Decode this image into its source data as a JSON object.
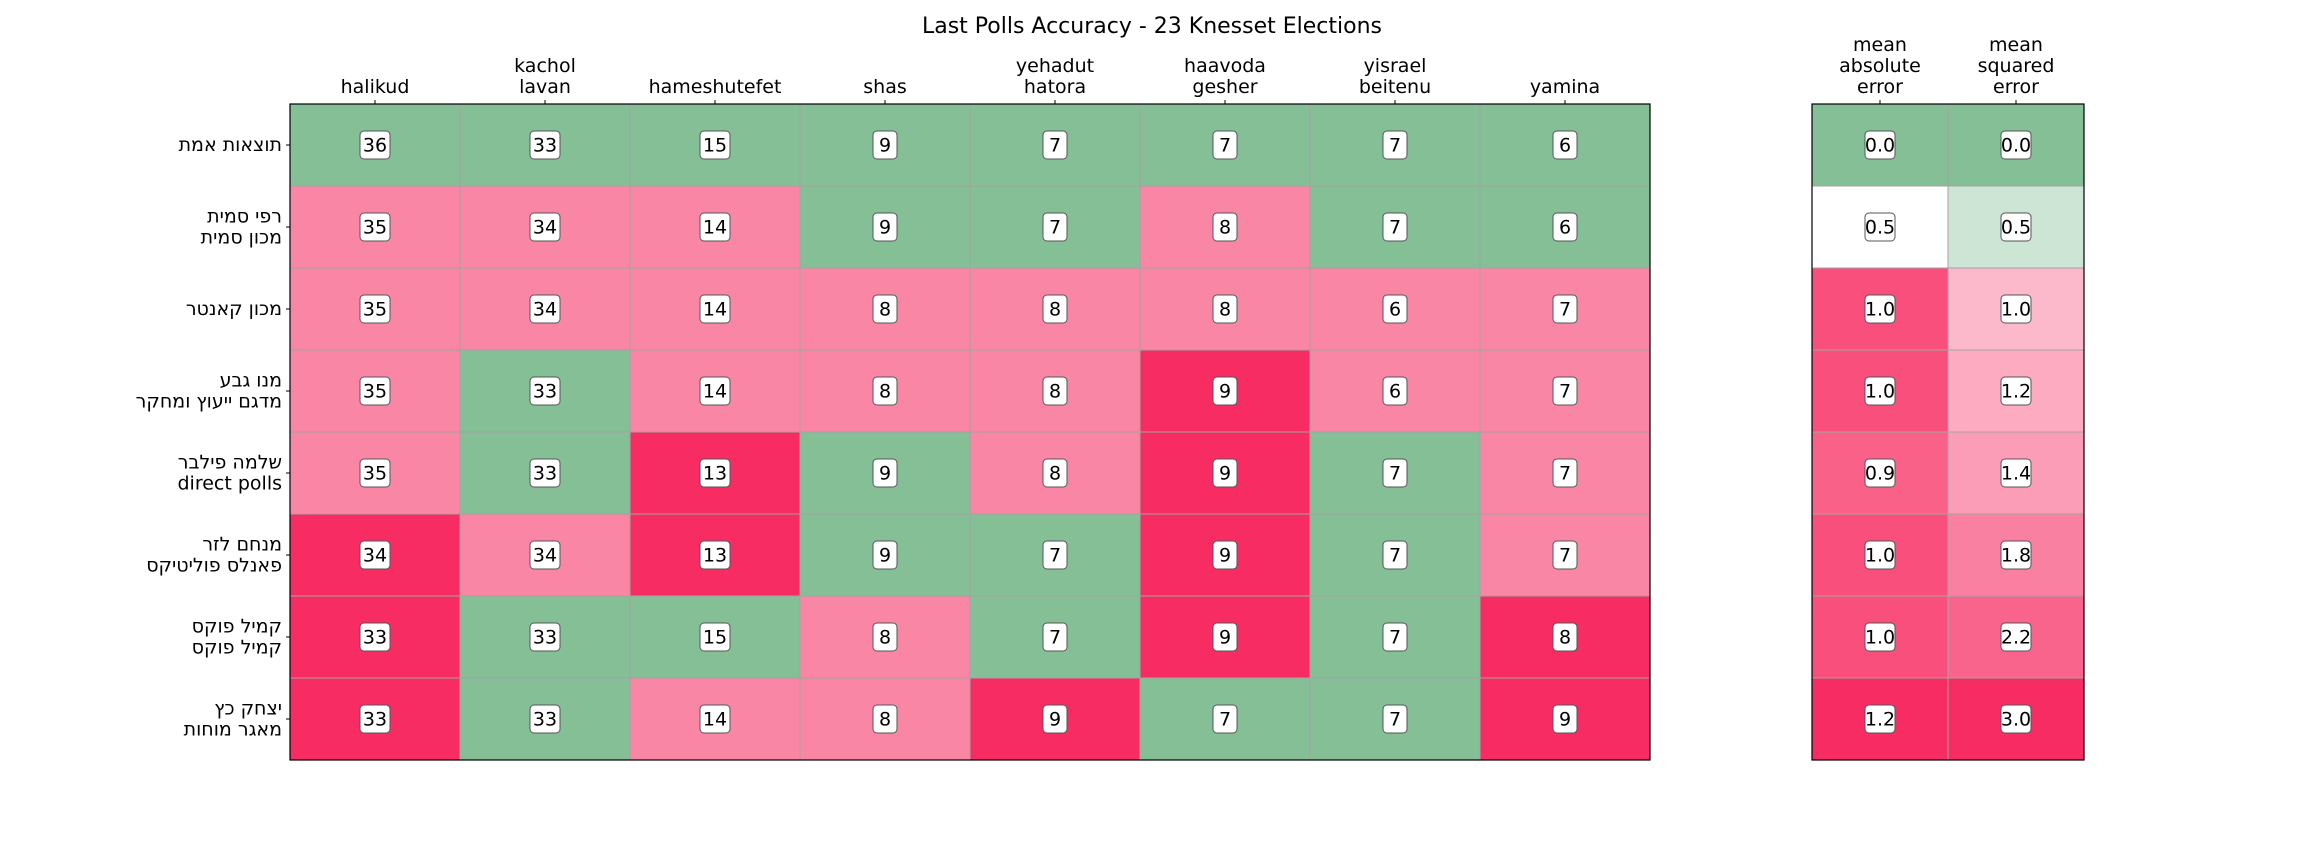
{
  "chart_data": {
    "type": "heatmap",
    "title": "Last Polls Accuracy - 23 Knesset Elections",
    "parties": [
      [
        "halikud"
      ],
      [
        "kachol",
        "lavan"
      ],
      [
        "hameshutefet"
      ],
      [
        "shas"
      ],
      [
        "yehadut",
        "hatora"
      ],
      [
        "haavoda",
        "gesher"
      ],
      [
        "yisrael",
        "beitenu"
      ],
      [
        "yamina"
      ]
    ],
    "error_columns": [
      [
        "mean",
        "absolute",
        "error"
      ],
      [
        "mean",
        "squared",
        "error"
      ]
    ],
    "rows": [
      {
        "label": [
          "תוצאות אמת"
        ],
        "seats": [
          36,
          33,
          15,
          9,
          7,
          7,
          7,
          6
        ],
        "mae": "0.0",
        "mse": "0.0"
      },
      {
        "label": [
          "רפי סמית",
          "מכון סמית"
        ],
        "seats": [
          35,
          34,
          14,
          9,
          7,
          8,
          7,
          6
        ],
        "mae": "0.5",
        "mse": "0.5"
      },
      {
        "label": [
          "מכון קאנטר"
        ],
        "seats": [
          35,
          34,
          14,
          8,
          8,
          8,
          6,
          7
        ],
        "mae": "1.0",
        "mse": "1.0"
      },
      {
        "label": [
          "מנו גבע",
          "מדגם ייעוץ ומחקר"
        ],
        "seats": [
          35,
          33,
          14,
          8,
          8,
          9,
          6,
          7
        ],
        "mae": "1.0",
        "mse": "1.2"
      },
      {
        "label": [
          "שלמה פילבר",
          "direct polls"
        ],
        "seats": [
          35,
          33,
          13,
          9,
          8,
          9,
          7,
          7
        ],
        "mae": "0.9",
        "mse": "1.4"
      },
      {
        "label": [
          "מנחם לזר",
          "פאנלס פוליטיקס"
        ],
        "seats": [
          34,
          34,
          13,
          9,
          7,
          9,
          7,
          7
        ],
        "mae": "1.0",
        "mse": "1.8"
      },
      {
        "label": [
          "קמיל פוקס",
          "קמיל פוקס"
        ],
        "seats": [
          33,
          33,
          15,
          8,
          7,
          9,
          7,
          8
        ],
        "mae": "1.0",
        "mse": "2.2"
      },
      {
        "label": [
          "יצחק כץ",
          "מאגר מוחות"
        ],
        "seats": [
          33,
          33,
          14,
          8,
          9,
          7,
          7,
          9
        ],
        "mae": "1.2",
        "mse": "3.0"
      }
    ],
    "colors": {
      "exact": "#84bf96",
      "off_by_one": "#f986a5",
      "off_by_more": "#f72c62",
      "neutral": "#ffffff",
      "mse_near_zero": "#cde5d4",
      "grid": "#a3a3a3",
      "frame": "#000000"
    }
  }
}
